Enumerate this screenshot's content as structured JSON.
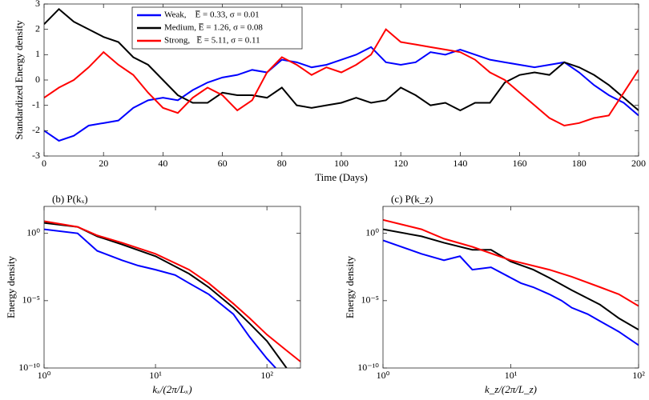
{
  "chart_data": [
    {
      "type": "line",
      "xlabel": "Time (Days)",
      "ylabel": "Standardized Energy density",
      "x": [
        0,
        5,
        10,
        15,
        20,
        25,
        30,
        35,
        40,
        45,
        50,
        55,
        60,
        65,
        70,
        75,
        80,
        85,
        90,
        95,
        100,
        105,
        110,
        115,
        120,
        125,
        130,
        135,
        140,
        145,
        150,
        155,
        160,
        165,
        170,
        175,
        180,
        185,
        190,
        195,
        200
      ],
      "series": [
        {
          "name": "Weak,    E̅ = 0.33, σ = 0.01",
          "color": "#0000ff",
          "values": [
            -2.0,
            -2.4,
            -2.2,
            -1.8,
            -1.7,
            -1.6,
            -1.1,
            -0.8,
            -0.7,
            -0.8,
            -0.4,
            -0.1,
            0.1,
            0.2,
            0.4,
            0.3,
            0.8,
            0.7,
            0.5,
            0.6,
            0.8,
            1.0,
            1.3,
            0.7,
            0.6,
            0.7,
            1.1,
            1.0,
            1.2,
            1.0,
            0.8,
            0.7,
            0.6,
            0.5,
            0.6,
            0.7,
            0.3,
            -0.2,
            -0.6,
            -0.9,
            -1.4
          ]
        },
        {
          "name": "Medium, E̅ = 1.26, σ = 0.08",
          "color": "#000000",
          "values": [
            2.2,
            2.8,
            2.3,
            2.0,
            1.7,
            1.5,
            0.9,
            0.6,
            0.0,
            -0.6,
            -0.9,
            -0.9,
            -0.5,
            -0.6,
            -0.6,
            -0.7,
            -0.3,
            -1.0,
            -1.1,
            -1.0,
            -0.9,
            -0.7,
            -0.9,
            -0.8,
            -0.3,
            -0.6,
            -1.0,
            -0.9,
            -1.2,
            -0.9,
            -0.9,
            -0.1,
            0.2,
            0.3,
            0.2,
            0.7,
            0.5,
            0.2,
            -0.2,
            -0.7,
            -1.2
          ]
        },
        {
          "name": "Strong,   E̅ = 5.11, σ = 0.11",
          "color": "#ff0000",
          "values": [
            -0.7,
            -0.3,
            0.0,
            0.5,
            1.1,
            0.6,
            0.2,
            -0.5,
            -1.1,
            -1.3,
            -0.7,
            -0.3,
            -0.6,
            -1.2,
            -0.8,
            0.3,
            0.9,
            0.6,
            0.2,
            0.5,
            0.3,
            0.6,
            1.0,
            2.0,
            1.5,
            1.4,
            1.3,
            1.2,
            1.1,
            0.8,
            0.3,
            0.0,
            -0.5,
            -1.0,
            -1.5,
            -1.8,
            -1.7,
            -1.5,
            -1.4,
            -0.5,
            0.4
          ]
        }
      ],
      "xlim": [
        0,
        200
      ],
      "ylim": [
        -3,
        3
      ],
      "xticks": [
        0,
        20,
        40,
        60,
        80,
        100,
        120,
        140,
        160,
        180,
        200
      ],
      "yticks": [
        -3,
        -2,
        -1,
        0,
        1,
        2,
        3
      ],
      "legend": "top-left"
    },
    {
      "type": "line",
      "title": "(b) P(kₓ)",
      "xlabel": "kₓ/(2π/Lₓ)",
      "ylabel": "Energy density",
      "log_x": true,
      "log_y": true,
      "series": [
        {
          "color": "#0000ff",
          "x": [
            1,
            2,
            3,
            5,
            7,
            10,
            15,
            20,
            30,
            50,
            70,
            100,
            120
          ],
          "values": [
            2,
            1,
            0.05,
            0.01,
            0.004,
            0.002,
            0.0008,
            0.0002,
            3e-05,
            1e-06,
            2e-08,
            5e-10,
            1e-10
          ]
        },
        {
          "color": "#000000",
          "x": [
            1,
            2,
            3,
            5,
            10,
            20,
            30,
            50,
            70,
            100,
            150
          ],
          "values": [
            6,
            3,
            0.6,
            0.15,
            0.02,
            0.001,
            0.0001,
            3e-06,
            2e-07,
            1e-08,
            1e-10
          ]
        },
        {
          "color": "#ff0000",
          "x": [
            1,
            2,
            3,
            5,
            10,
            20,
            30,
            50,
            70,
            100,
            150,
            200
          ],
          "values": [
            8,
            3,
            0.7,
            0.2,
            0.03,
            0.002,
            0.0002,
            6e-06,
            5e-07,
            3e-08,
            2e-09,
            3e-10
          ]
        }
      ],
      "xlim": [
        1,
        200
      ],
      "ylim": [
        1e-10,
        100
      ],
      "xticks": [
        {
          "value": 1,
          "label": "10⁰"
        },
        {
          "value": 10,
          "label": "10¹"
        },
        {
          "value": 100,
          "label": "10²"
        }
      ],
      "yticks": [
        {
          "value": 1e-10,
          "label": "10⁻¹⁰"
        },
        {
          "value": 1e-05,
          "label": "10⁻⁵"
        },
        {
          "value": 1,
          "label": "10⁰"
        }
      ]
    },
    {
      "type": "line",
      "title": "(c) P(k_z)",
      "xlabel": "k_z/(2π/L_z)",
      "ylabel": "Energy density",
      "log_x": true,
      "log_y": true,
      "series": [
        {
          "color": "#0000ff",
          "x": [
            1,
            2,
            3,
            4,
            5,
            7,
            10,
            12,
            15,
            20,
            25,
            30,
            40,
            50,
            70,
            100
          ],
          "values": [
            0.3,
            0.03,
            0.01,
            0.02,
            0.002,
            0.003,
            0.0005,
            0.0002,
            0.0001,
            3e-05,
            1e-05,
            3e-06,
            1e-06,
            3e-07,
            5e-08,
            5e-09
          ]
        },
        {
          "color": "#000000",
          "x": [
            1,
            2,
            3,
            5,
            7,
            10,
            15,
            20,
            30,
            50,
            70,
            100
          ],
          "values": [
            2,
            0.6,
            0.2,
            0.06,
            0.06,
            0.008,
            0.002,
            0.0005,
            6e-05,
            5e-06,
            5e-07,
            7e-08
          ]
        },
        {
          "color": "#ff0000",
          "x": [
            1,
            2,
            3,
            5,
            10,
            20,
            30,
            50,
            70,
            100
          ],
          "values": [
            10,
            2,
            0.4,
            0.1,
            0.01,
            0.002,
            0.0006,
            0.0001,
            3e-05,
            4e-06
          ]
        }
      ],
      "xlim": [
        1,
        100
      ],
      "ylim": [
        1e-10,
        100
      ],
      "xticks": [
        {
          "value": 1,
          "label": "10⁰"
        },
        {
          "value": 10,
          "label": "10¹"
        },
        {
          "value": 100,
          "label": "10²"
        }
      ],
      "yticks": [
        {
          "value": 1e-10,
          "label": "10⁻¹⁰"
        },
        {
          "value": 1e-05,
          "label": "10⁻⁵"
        },
        {
          "value": 1,
          "label": "10⁰"
        }
      ]
    }
  ]
}
